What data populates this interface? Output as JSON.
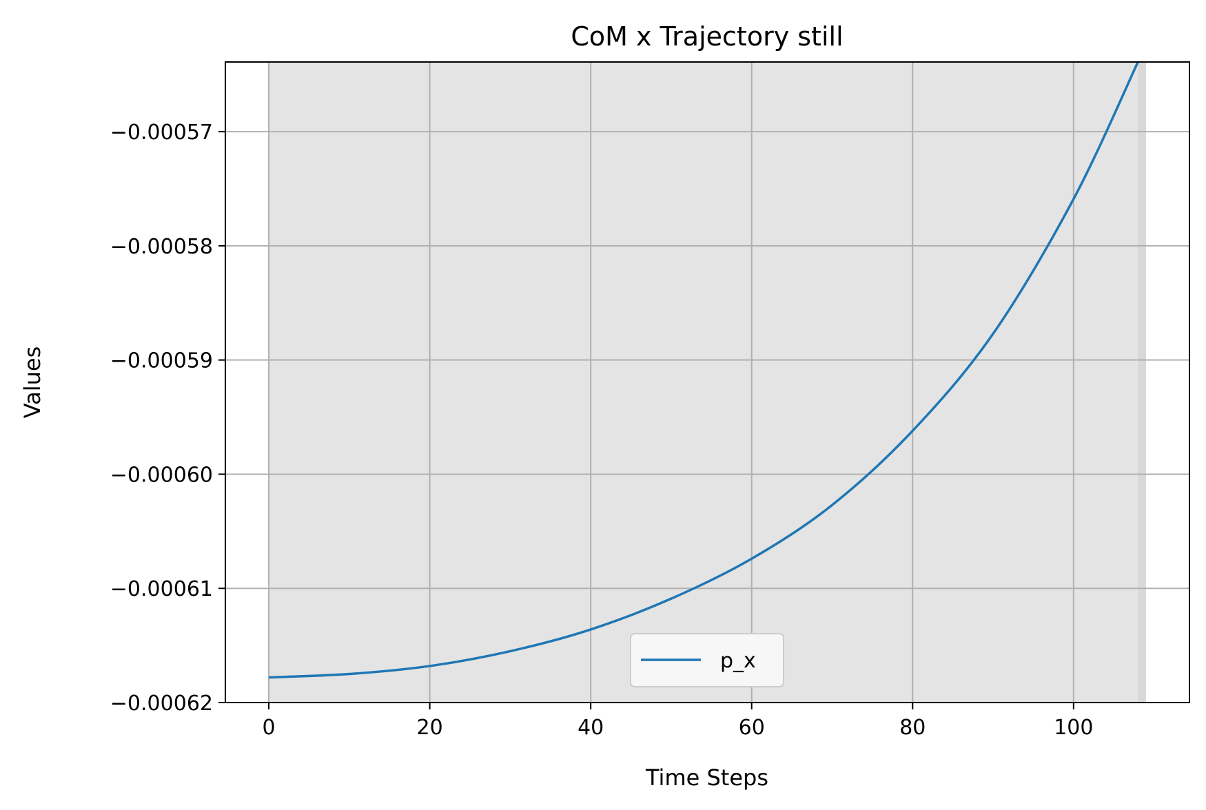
{
  "chart_data": {
    "type": "line",
    "title": "CoM x Trajectory still",
    "xlabel": "Time Steps",
    "ylabel": "Values",
    "xlim": [
      -5.4,
      114.4
    ],
    "ylim": [
      -0.00062,
      -0.0005639
    ],
    "x_ticks": [
      0,
      20,
      40,
      60,
      80,
      100
    ],
    "x_tick_labels": [
      "0",
      "20",
      "40",
      "60",
      "80",
      "100"
    ],
    "y_ticks": [
      -0.00057,
      -0.00058,
      -0.00059,
      -0.0006,
      -0.00061,
      -0.00062
    ],
    "y_tick_labels": [
      "−0.00057",
      "−0.00058",
      "−0.00059",
      "−0.00060",
      "−0.00061",
      "−0.00062"
    ],
    "grid": true,
    "legend_position": "lower-center",
    "shaded_regions": [
      {
        "x_start": 0,
        "x_end": 108,
        "color": "#e4e4e4"
      },
      {
        "x_start": 108,
        "x_end": 109,
        "color": "#d8d8d8"
      }
    ],
    "series": [
      {
        "name": "p_x",
        "color": "#1f77b4",
        "x": [
          0,
          10,
          20,
          30,
          40,
          50,
          60,
          70,
          80,
          90,
          100,
          108
        ],
        "y": [
          -0.0006178,
          -0.0006175,
          -0.0006168,
          -0.0006155,
          -0.0006136,
          -0.0006109,
          -0.0006074,
          -0.0006027,
          -0.0005962,
          -0.0005877,
          -0.0005759,
          -0.0005639
        ]
      }
    ]
  }
}
